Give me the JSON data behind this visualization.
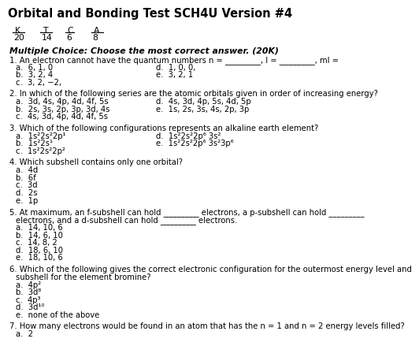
{
  "title": "Orbital and Bonding Test SCH4U Version #4",
  "header_labels": [
    "K",
    "T",
    "C",
    "A"
  ],
  "header_values": [
    "20",
    "14",
    "6",
    "8"
  ],
  "section_title": "Multiple Choice: Choose the most correct answer. (20K)",
  "questions": [
    {
      "num": "1.",
      "text": "An electron cannot have the quantum numbers n = _________, l = _________, ml =",
      "choices_left": [
        "a.  6, 1, 0",
        "b.  3, 2, 4",
        "c.  3, 2, −2,"
      ],
      "choices_right": [
        "d.  1, 0, 0,",
        "e.  3, 2, 1"
      ]
    },
    {
      "num": "2.",
      "text": "In which of the following series are the atomic orbitals given in order of increasing energy?",
      "choices_left": [
        "a.  3d, 4s, 4p, 4d, 4f, 5s",
        "b.  2s, 3s, 2p, 3p, 3d, 4s",
        "c.  4s, 3d, 4p, 4d, 4f, 5s"
      ],
      "choices_right": [
        "d.  4s, 3d, 4p, 5s, 4d, 5p",
        "e.  1s, 2s, 3s, 4s, 2p, 3p"
      ]
    },
    {
      "num": "3.",
      "text": "Which of the following configurations represents an alkaline earth element?",
      "choices_left": [
        "a.  1s²2s²2p¹",
        "b.  1s²2s¹",
        "c.  1s²2s²2p²"
      ],
      "choices_right": [
        "d.  1s²2s²2p⁶ 3s²",
        "e.  1s²2s²2p⁶ 3s²3p⁶"
      ]
    },
    {
      "num": "4.",
      "text": "Which subshell contains only one orbital?",
      "choices_left": [
        "a.  4d",
        "b.  6f",
        "c.  3d",
        "d.  2s",
        "e.  1p"
      ],
      "choices_right": []
    },
    {
      "num": "5.",
      "text": "At maximum, an f-subshell can hold _________ electrons, a p-subshell can hold _________",
      "text2": "electrons, and a d-subshell can hold _________ electrons.",
      "choices_left": [
        "a.  14, 10, 6",
        "b.  14, 6, 10",
        "c.  14, 8, 2",
        "d.  18, 6, 10",
        "e.  18, 10, 6"
      ],
      "choices_right": []
    },
    {
      "num": "6.",
      "text": "Which of the following gives the correct electronic configuration for the outermost energy level and",
      "text2": "subshell for the element bromine?",
      "choices_left": [
        "a.  4p²",
        "b.  3d⁸",
        "c.  4p³",
        "d.  3d¹⁰",
        "e.  none of the above"
      ],
      "choices_right": []
    },
    {
      "num": "7.",
      "text": "How many electrons would be found in an atom that has the n = 1 and n = 2 energy levels filled?",
      "choices_left": [
        "a.  2"
      ],
      "choices_right": []
    }
  ],
  "bg_color": "#ffffff",
  "text_color": "#000000",
  "title_fontsize": 10.5,
  "body_fontsize": 7.2,
  "header_fontsize": 7.8,
  "section_fontsize": 7.8
}
